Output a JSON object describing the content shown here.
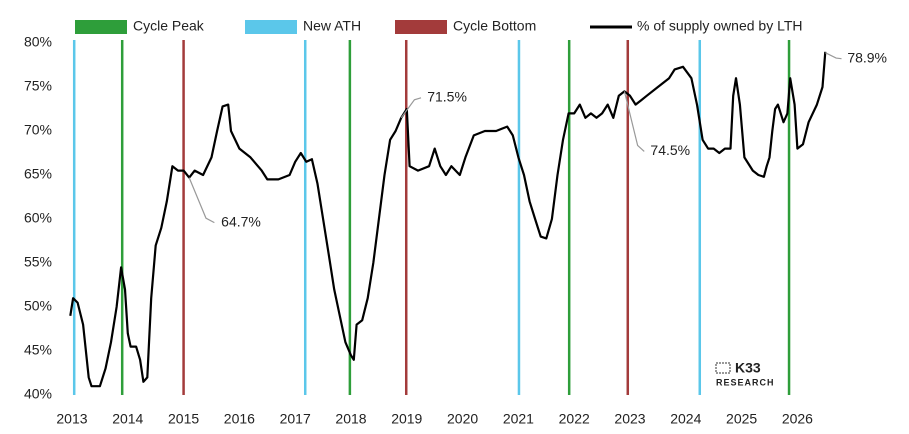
{
  "chart_data": {
    "type": "line",
    "markers": [
      {
        "name": "Cycle Peak",
        "color": "#2e9e3a",
        "x": [
          2013.9,
          2017.98,
          2021.91,
          2025.85
        ]
      },
      {
        "name": "New ATH",
        "color": "#5bc7ea",
        "x": [
          2013.04,
          2017.18,
          2021.01,
          2024.25
        ]
      },
      {
        "name": "Cycle Bottom",
        "color": "#a33b3b",
        "x": [
          2015.0,
          2018.99,
          2022.96
        ]
      }
    ],
    "series": [
      {
        "name": "% of supply owned by LTH",
        "color": "#000000",
        "x": [
          2012.97,
          2013.02,
          2013.1,
          2013.2,
          2013.3,
          2013.35,
          2013.5,
          2013.6,
          2013.7,
          2013.8,
          2013.88,
          2013.95,
          2014.0,
          2014.05,
          2014.15,
          2014.22,
          2014.28,
          2014.35,
          2014.42,
          2014.5,
          2014.6,
          2014.7,
          2014.8,
          2014.9,
          2015.0,
          2015.1,
          2015.2,
          2015.35,
          2015.5,
          2015.6,
          2015.7,
          2015.8,
          2015.85,
          2016.0,
          2016.2,
          2016.4,
          2016.5,
          2016.7,
          2016.9,
          2017.0,
          2017.1,
          2017.2,
          2017.3,
          2017.4,
          2017.5,
          2017.6,
          2017.7,
          2017.8,
          2017.9,
          2018.0,
          2018.05,
          2018.1,
          2018.2,
          2018.3,
          2018.4,
          2018.5,
          2018.6,
          2018.7,
          2018.8,
          2018.9,
          2019.0,
          2019.05,
          2019.2,
          2019.4,
          2019.5,
          2019.6,
          2019.7,
          2019.8,
          2019.95,
          2020.05,
          2020.2,
          2020.4,
          2020.6,
          2020.8,
          2020.9,
          2021.0,
          2021.1,
          2021.2,
          2021.3,
          2021.4,
          2021.5,
          2021.6,
          2021.7,
          2021.8,
          2021.9,
          2022.0,
          2022.1,
          2022.2,
          2022.3,
          2022.4,
          2022.5,
          2022.6,
          2022.7,
          2022.8,
          2022.9,
          2023.0,
          2023.1,
          2023.2,
          2023.3,
          2023.5,
          2023.7,
          2023.8,
          2023.95,
          2024.1,
          2024.2,
          2024.3,
          2024.4,
          2024.5,
          2024.6,
          2024.7,
          2024.8,
          2024.85,
          2024.9,
          2024.97,
          2025.05,
          2025.2,
          2025.3,
          2025.4,
          2025.45,
          2025.5,
          2025.55,
          2025.6,
          2025.65,
          2025.75,
          2025.82,
          2025.87,
          2025.95,
          2026.0,
          2026.1,
          2026.2,
          2026.35,
          2026.45,
          2026.5
        ],
        "values": [
          49,
          51,
          50.5,
          48,
          42,
          41,
          41,
          43,
          46,
          50,
          54.5,
          52,
          47,
          45.5,
          45.5,
          44,
          41.5,
          42,
          51,
          57,
          59,
          62,
          66,
          65.5,
          65.5,
          64.7,
          65.5,
          65,
          67,
          70,
          72.8,
          73,
          70,
          68,
          67,
          65.5,
          64.5,
          64.5,
          65,
          66.5,
          67.5,
          66.5,
          66.8,
          64,
          60,
          56,
          52,
          49,
          46,
          44.5,
          44,
          48,
          48.5,
          51,
          55,
          60,
          65,
          69,
          70,
          71.5,
          72.5,
          66,
          65.5,
          66,
          68,
          66,
          65,
          66,
          65,
          67,
          69.5,
          70,
          70,
          70.5,
          69.5,
          67,
          65,
          62,
          60,
          58,
          57.8,
          60,
          65,
          69,
          72,
          72,
          73,
          71.5,
          72,
          71.5,
          72,
          73,
          71.5,
          74,
          74.5,
          74,
          73,
          73.5,
          74,
          75,
          76,
          77,
          77.3,
          76,
          73,
          69,
          68,
          68,
          67.5,
          68,
          68,
          74,
          76,
          73,
          67,
          65.5,
          65,
          64.8,
          66,
          67,
          70,
          72.5,
          73,
          71,
          72,
          76,
          73,
          68,
          68.5,
          71,
          73,
          75,
          79
        ]
      }
    ],
    "annotations": [
      {
        "x": 2015.1,
        "value": 64.7,
        "label": "64.7%"
      },
      {
        "x": 2018.9,
        "value": 71.5,
        "label": "71.5%"
      },
      {
        "x": 2022.9,
        "value": 74.5,
        "label": "74.5%"
      },
      {
        "x": 2026.5,
        "value": 78.9,
        "label": "78.9%"
      }
    ],
    "xlim": [
      2012.97,
      2026.6
    ],
    "xticks": [
      2013,
      2014,
      2015,
      2016,
      2017,
      2018,
      2019,
      2020,
      2021,
      2022,
      2023,
      2024,
      2025,
      2026
    ],
    "ylim": [
      40,
      80
    ],
    "yticks": [
      {
        "value": 40,
        "label": "40%"
      },
      {
        "value": 45,
        "label": "45%"
      },
      {
        "value": 50,
        "label": "50%"
      },
      {
        "value": 55,
        "label": "55%"
      },
      {
        "value": 60,
        "label": "60%"
      },
      {
        "value": 65,
        "label": "65%"
      },
      {
        "value": 70,
        "label": "70%"
      },
      {
        "value": 75,
        "label": "75%"
      },
      {
        "value": 80,
        "label": "80%"
      }
    ],
    "watermark": "K33",
    "watermark_sub": "RESEARCH"
  }
}
